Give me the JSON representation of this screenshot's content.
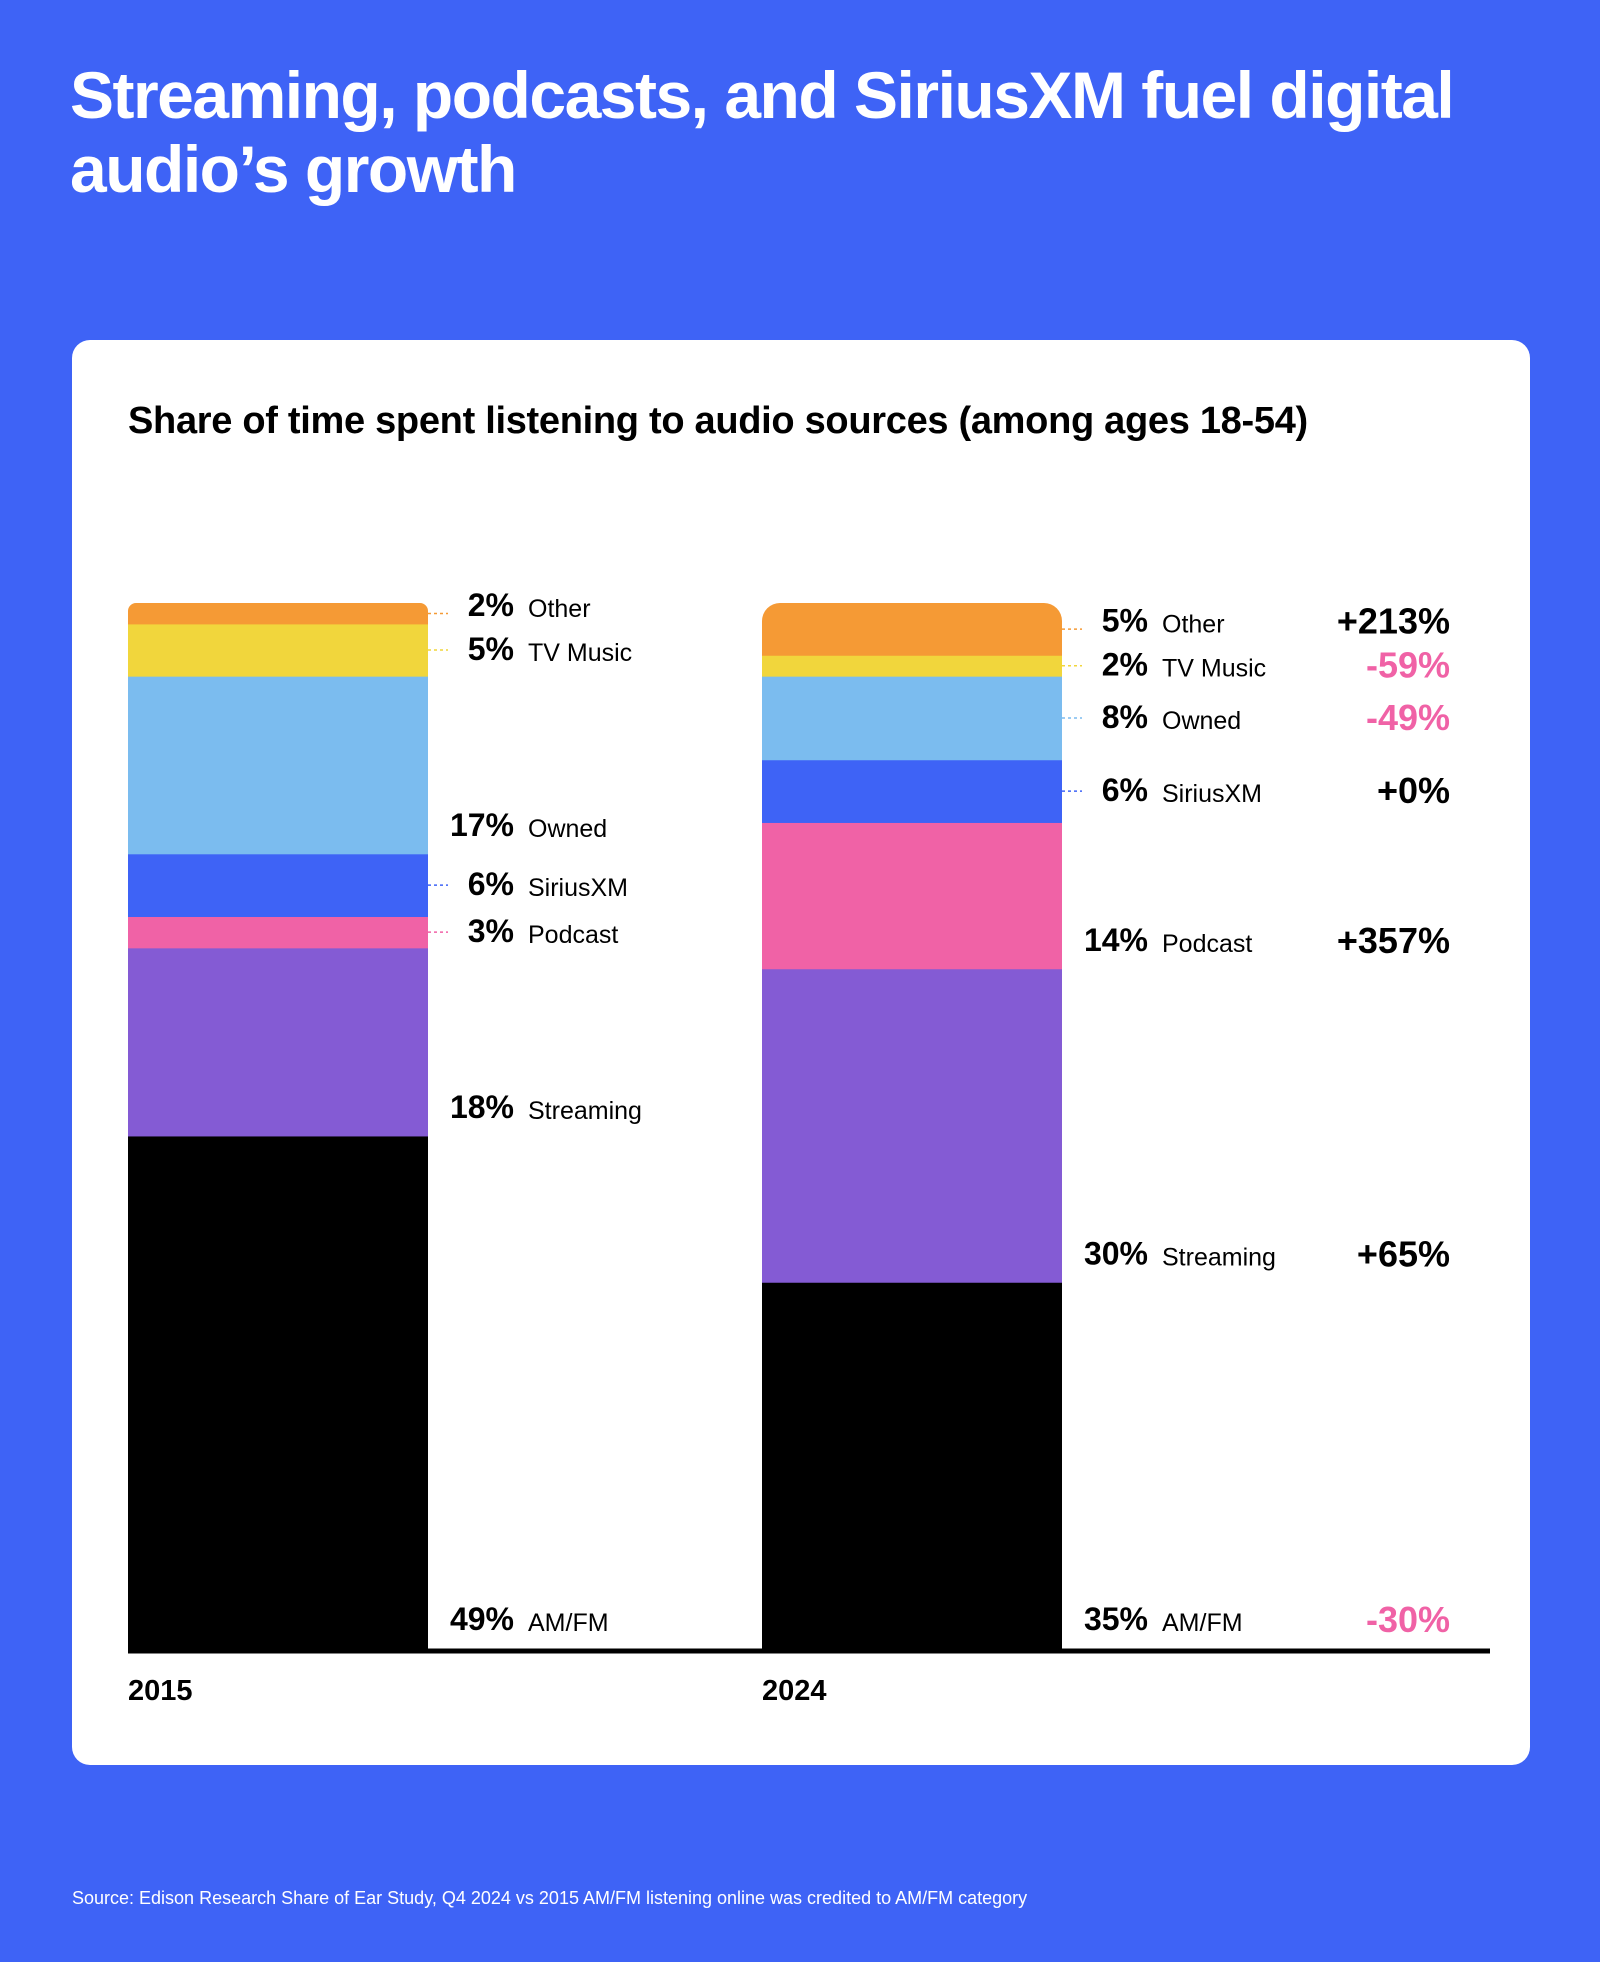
{
  "page": {
    "headline": "Streaming, podcasts, and SiriusXM fuel digital audio’s growth",
    "source": "Source: Edison Research Share of Ear Study, Q4 2024 vs 2015 AM/FM listening online was credited to AM/FM category"
  },
  "colors": {
    "background": "#3e63f6",
    "card": "#ffffff",
    "positive_change": "#000000",
    "negative_change": "#f062a6"
  },
  "chart_data": {
    "type": "bar",
    "stacked": true,
    "title": "Share of time spent listening to audio sources (among ages 18-54)",
    "categories": [
      "2015",
      "2024"
    ],
    "series": [
      {
        "name": "AM/FM",
        "color": "#000000",
        "values": [
          49,
          35
        ],
        "labels": [
          "49%",
          "35%"
        ],
        "change": "-30%",
        "change_positive": false
      },
      {
        "name": "Streaming",
        "color": "#845bd4",
        "values": [
          18,
          30
        ],
        "labels": [
          "18%",
          "30%"
        ],
        "change": "+65%",
        "change_positive": true
      },
      {
        "name": "Podcast",
        "color": "#f062a6",
        "values": [
          3,
          14
        ],
        "labels": [
          "3%",
          "14%"
        ],
        "change": "+357%",
        "change_positive": true
      },
      {
        "name": "SiriusXM",
        "color": "#3e63f6",
        "values": [
          6,
          6
        ],
        "labels": [
          "6%",
          "6%"
        ],
        "change": "+0%",
        "change_positive": true
      },
      {
        "name": "Owned",
        "color": "#7bbcef",
        "values": [
          17,
          8
        ],
        "labels": [
          "17%",
          "8%"
        ],
        "change": "-49%",
        "change_positive": false
      },
      {
        "name": "TV Music",
        "color": "#f1d63c",
        "values": [
          5,
          2
        ],
        "labels": [
          "5%",
          "2%"
        ],
        "change": "-59%",
        "change_positive": false
      },
      {
        "name": "Other",
        "color": "#f59a35",
        "values": [
          2,
          5
        ],
        "labels": [
          "2%",
          "5%"
        ],
        "change": "+213%",
        "change_positive": true
      }
    ]
  }
}
